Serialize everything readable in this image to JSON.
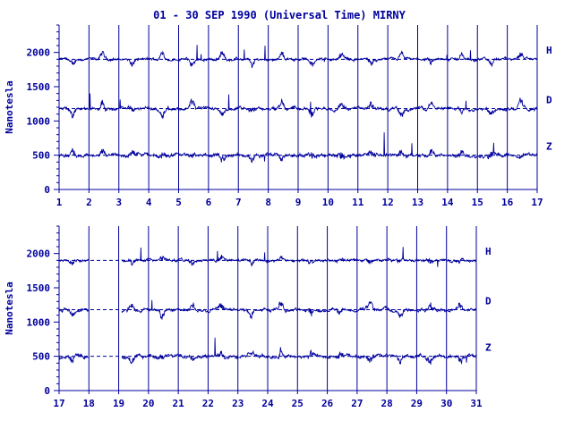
{
  "title": "01 - 30 SEP 1990 (Universal Time) MIRNY",
  "ylabel": "Nanotesla",
  "colors": {
    "ink": "#00009c",
    "background": "#ffffff"
  },
  "chart_data": [
    {
      "type": "line",
      "panel": "top",
      "x_day_range": [
        1,
        17
      ],
      "xticks": [
        "1",
        "2",
        "3",
        "4",
        "5",
        "6",
        "7",
        "8",
        "9",
        "10",
        "11",
        "12",
        "13",
        "14",
        "15",
        "16",
        "17"
      ],
      "yticks": [
        "0",
        "500",
        "1000",
        "1500",
        "2000"
      ],
      "ylim": [
        0,
        2400
      ],
      "components": [
        "H",
        "D",
        "Z"
      ],
      "baselines": {
        "H": 1900,
        "D": 1180,
        "Z": 500
      },
      "data_gaps": []
    },
    {
      "type": "line",
      "panel": "bottom",
      "x_day_range": [
        17,
        31
      ],
      "xticks": [
        "17",
        "18",
        "19",
        "20",
        "21",
        "22",
        "23",
        "24",
        "25",
        "26",
        "27",
        "28",
        "29",
        "30",
        "31"
      ],
      "yticks": [
        "0",
        "500",
        "1000",
        "1500",
        "2000"
      ],
      "ylim": [
        0,
        2400
      ],
      "components": [
        "H",
        "D",
        "Z"
      ],
      "baselines": {
        "H": 1900,
        "D": 1180,
        "Z": 500
      },
      "data_gaps": [
        [
          18,
          19.1
        ]
      ]
    }
  ]
}
